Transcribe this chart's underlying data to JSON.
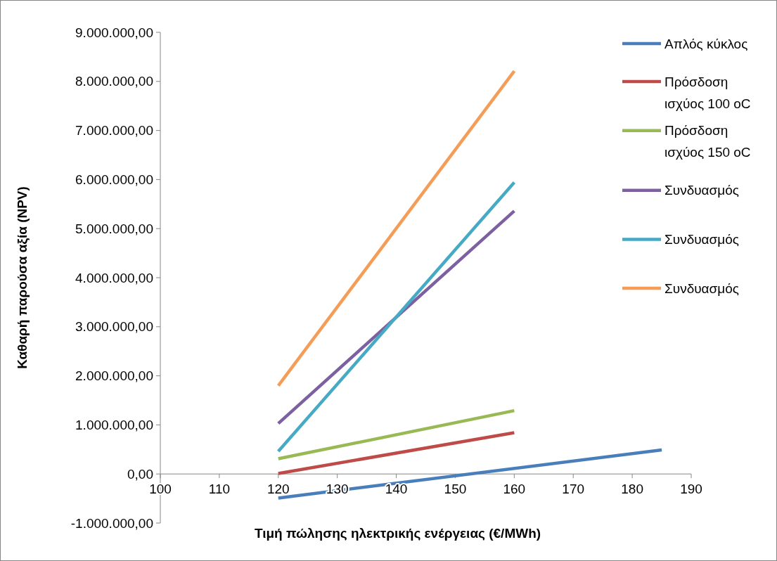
{
  "chart_data": {
    "type": "line",
    "xlabel": "Τιμή πώλησης ηλεκτρικής ενέργειας (€/MWh)",
    "ylabel": "Καθαρή παρούσα αξία (NPV)",
    "xlim": [
      100,
      190
    ],
    "xticks": [
      100,
      110,
      120,
      130,
      140,
      150,
      160,
      170,
      180,
      190
    ],
    "ylim": [
      -1000000,
      9000000
    ],
    "yticks": [
      {
        "value": -1000000,
        "label": "-1.000.000,00"
      },
      {
        "value": 0,
        "label": "0,00"
      },
      {
        "value": 1000000,
        "label": "1.000.000,00"
      },
      {
        "value": 2000000,
        "label": "2.000.000,00"
      },
      {
        "value": 3000000,
        "label": "3.000.000,00"
      },
      {
        "value": 4000000,
        "label": "4.000.000,00"
      },
      {
        "value": 5000000,
        "label": "5.000.000,00"
      },
      {
        "value": 6000000,
        "label": "6.000.000,00"
      },
      {
        "value": 7000000,
        "label": "7.000.000,00"
      },
      {
        "value": 8000000,
        "label": "8.000.000,00"
      },
      {
        "value": 9000000,
        "label": "9.000.000,00"
      }
    ],
    "grid": false,
    "legend": "right",
    "marker": "none",
    "line_style": "solid",
    "series": [
      {
        "name": "Απλός κύκλος",
        "color": "#4a7ebb",
        "x": [
          120,
          185
        ],
        "values": [
          -490000,
          490000
        ]
      },
      {
        "name": "Πρόσδοση ισχύος 100 oC",
        "color": "#be4b48",
        "x": [
          120,
          160
        ],
        "values": [
          10000,
          840000
        ]
      },
      {
        "name": "Πρόσδοση ισχύος 150 oC",
        "color": "#98b954",
        "x": [
          120,
          160
        ],
        "values": [
          310000,
          1290000
        ]
      },
      {
        "name": "Συνδυασμός",
        "color": "#7d60a0",
        "x": [
          120,
          160
        ],
        "values": [
          1030000,
          5360000
        ]
      },
      {
        "name": "Συνδυασμός",
        "color": "#46aac5",
        "x": [
          120,
          160
        ],
        "values": [
          460000,
          5940000
        ]
      },
      {
        "name": "Συνδυασμός",
        "color": "#f59d56",
        "x": [
          120,
          160
        ],
        "values": [
          1800000,
          8210000
        ]
      }
    ]
  }
}
